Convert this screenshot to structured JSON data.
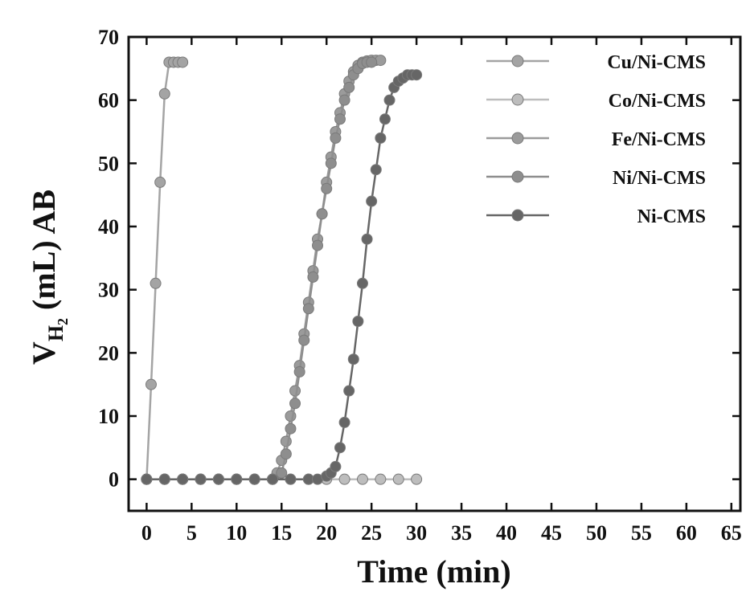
{
  "chart_data": {
    "type": "line",
    "xlabel": "Time (min)",
    "ylabel": {
      "main": "V",
      "sub": "H",
      "subsub": "2",
      "rest": " (mL) AB"
    },
    "xlim": [
      -2,
      66
    ],
    "ylim": [
      -5,
      70
    ],
    "xticks": [
      0,
      5,
      10,
      15,
      20,
      25,
      30,
      35,
      40,
      45,
      50,
      55,
      60,
      65
    ],
    "yticks": [
      0,
      10,
      20,
      30,
      40,
      50,
      60,
      70
    ],
    "grid": false,
    "legend_position": "top-right",
    "series": [
      {
        "name": "Cu/Ni-CMS",
        "color": "#a4a4a4",
        "marker": "circle",
        "x": [
          0,
          0.5,
          1,
          1.5,
          2,
          2.5,
          3,
          3.5,
          4
        ],
        "y": [
          0,
          15,
          31,
          47,
          61,
          66,
          66,
          66,
          66
        ]
      },
      {
        "name": "Co/Ni-CMS",
        "color": "#bdbdbd",
        "marker": "circle",
        "x": [
          0,
          2,
          4,
          6,
          8,
          10,
          12,
          14,
          16,
          18,
          20,
          22,
          24,
          26,
          28,
          30
        ],
        "y": [
          0,
          0,
          0,
          0,
          0,
          0,
          0,
          0,
          0,
          0,
          0,
          0,
          0,
          0,
          0,
          0
        ]
      },
      {
        "name": "Fe/Ni-CMS",
        "color": "#9b9b9b",
        "marker": "circle",
        "x": [
          0,
          2,
          4,
          6,
          8,
          10,
          12,
          14,
          14.5,
          15,
          15.5,
          16,
          16.5,
          17,
          17.5,
          18,
          18.5,
          19,
          19.5,
          20,
          20.5,
          21,
          21.5,
          22,
          22.5,
          23,
          23.5,
          24,
          24.5,
          25,
          25.5,
          26
        ],
        "y": [
          0,
          0,
          0,
          0,
          0,
          0,
          0,
          0,
          1,
          3,
          6,
          10,
          14,
          18,
          23,
          28,
          33,
          38,
          42,
          47,
          51,
          55,
          58,
          61,
          63,
          64.5,
          65.5,
          66,
          66.2,
          66.3,
          66.3,
          66.3
        ]
      },
      {
        "name": "Ni/Ni-CMS",
        "color": "#8e8e8e",
        "marker": "circle",
        "x": [
          0,
          2,
          4,
          6,
          8,
          10,
          12,
          14,
          15,
          15.5,
          16,
          16.5,
          17,
          17.5,
          18,
          18.5,
          19,
          19.5,
          20,
          20.5,
          21,
          21.5,
          22,
          22.5,
          23,
          23.5,
          24,
          24.5,
          25
        ],
        "y": [
          0,
          0,
          0,
          0,
          0,
          0,
          0,
          0,
          1,
          4,
          8,
          12,
          17,
          22,
          27,
          32,
          37,
          42,
          46,
          50,
          54,
          57,
          60,
          62,
          64,
          65,
          65.8,
          66,
          66
        ]
      },
      {
        "name": "Ni-CMS",
        "color": "#666666",
        "marker": "circle",
        "x": [
          0,
          2,
          4,
          6,
          8,
          10,
          12,
          14,
          16,
          18,
          19,
          20,
          20.5,
          21,
          21.5,
          22,
          22.5,
          23,
          23.5,
          24,
          24.5,
          25,
          25.5,
          26,
          26.5,
          27,
          27.5,
          28,
          28.5,
          29,
          29.5,
          30
        ],
        "y": [
          0,
          0,
          0,
          0,
          0,
          0,
          0,
          0,
          0,
          0,
          0,
          0.5,
          1,
          2,
          5,
          9,
          14,
          19,
          25,
          31,
          38,
          44,
          49,
          54,
          57,
          60,
          62,
          63,
          63.5,
          64,
          64,
          64
        ]
      }
    ]
  }
}
